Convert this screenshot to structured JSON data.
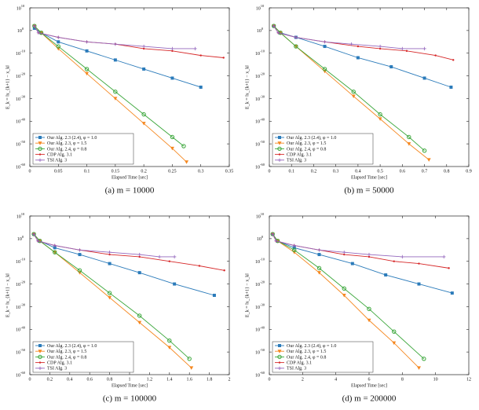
{
  "chart_data": [
    {
      "type": "line",
      "caption": "(a)  m = 10000",
      "xlabel": "Elapsed Time [sec]",
      "ylabel": "E_k = ‖x_{k+1} − x_k‖",
      "log_y": true,
      "legend": "lower left",
      "xlim": [
        0,
        0.35
      ],
      "xticks": [
        0,
        0.05,
        0.1,
        0.15,
        0.2,
        0.25,
        0.3,
        0.35
      ],
      "ylim": [
        1e-60,
        10000000000.0
      ],
      "yticks": [
        {
          "value": 10000000000.0,
          "label": "10^10"
        },
        {
          "value": 1,
          "label": "10^0"
        },
        {
          "value": 1e-10,
          "label": "10^-10"
        },
        {
          "value": 1e-20,
          "label": "10^-20"
        },
        {
          "value": 1e-30,
          "label": "10^-30"
        },
        {
          "value": 1e-40,
          "label": "10^-40"
        },
        {
          "value": 1e-50,
          "label": "10^-50"
        },
        {
          "value": 1e-60,
          "label": "10^-60"
        }
      ],
      "series": [
        {
          "name": "Our Alg. 2.3 (2.4), φ = 1.0",
          "color": "#2b7bba",
          "marker": "square",
          "x": [
            0.008,
            0.02,
            0.05,
            0.1,
            0.15,
            0.2,
            0.25,
            0.3
          ],
          "values": [
            10.0,
            0.1,
            1e-05,
            1e-09,
            1e-13,
            1e-17,
            1e-21,
            1e-25
          ]
        },
        {
          "name": "Our Alg. 2.3, φ = 1.5",
          "color": "#f5871f",
          "marker": "triangle-down",
          "x": [
            0.008,
            0.02,
            0.05,
            0.1,
            0.15,
            0.2,
            0.25,
            0.275
          ],
          "values": [
            100.0,
            0.1,
            1e-08,
            1e-19,
            1e-30,
            1e-41,
            1e-52,
            1e-58
          ]
        },
        {
          "name": "Our Alg. 2.4, φ = 0.8",
          "color": "#3aa63a",
          "marker": "circle",
          "x": [
            0.008,
            0.02,
            0.05,
            0.1,
            0.15,
            0.2,
            0.25,
            0.27
          ],
          "values": [
            100.0,
            0.1,
            1e-07,
            1e-17,
            1e-27,
            1e-37,
            1e-47,
            1e-51
          ]
        },
        {
          "name": "CDP Alg. 3.1",
          "color": "#d62728",
          "marker": "dot",
          "x": [
            0.008,
            0.015,
            0.05,
            0.1,
            0.15,
            0.2,
            0.25,
            0.3,
            0.34
          ],
          "values": [
            100.0,
            0.1,
            0.001,
            1e-05,
            1e-06,
            1e-08,
            1e-09,
            1e-11,
            1e-12
          ]
        },
        {
          "name": "TSI Alg. 3",
          "color": "#9467bd",
          "marker": "plus",
          "x": [
            0.008,
            0.015,
            0.05,
            0.1,
            0.15,
            0.2,
            0.25,
            0.29
          ],
          "values": [
            100.0,
            0.1,
            0.001,
            1e-05,
            1e-06,
            1e-07,
            1e-08,
            1e-08
          ]
        }
      ]
    },
    {
      "type": "line",
      "caption": "(b)  m = 50000",
      "xlabel": "Elapsed Time [sec]",
      "ylabel": "E_k = ‖x_{k+1} − x_k‖",
      "log_y": true,
      "legend": "lower left",
      "xlim": [
        0,
        0.9
      ],
      "xticks": [
        0,
        0.1,
        0.2,
        0.3,
        0.4,
        0.5,
        0.6,
        0.7,
        0.8,
        0.9
      ],
      "ylim": [
        1e-60,
        10000000000.0
      ],
      "yticks": [
        {
          "value": 10000000000.0,
          "label": "10^10"
        },
        {
          "value": 1,
          "label": "10^0"
        },
        {
          "value": 1e-10,
          "label": "10^-10"
        },
        {
          "value": 1e-20,
          "label": "10^-20"
        },
        {
          "value": 1e-30,
          "label": "10^-30"
        },
        {
          "value": 1e-40,
          "label": "10^-40"
        },
        {
          "value": 1e-50,
          "label": "10^-50"
        },
        {
          "value": 1e-60,
          "label": "10^-60"
        }
      ],
      "series": [
        {
          "name": "Our Alg. 2.3 (2.4), φ = 1.0",
          "color": "#2b7bba",
          "marker": "square",
          "x": [
            0.02,
            0.05,
            0.12,
            0.25,
            0.4,
            0.55,
            0.7,
            0.82
          ],
          "values": [
            100.0,
            0.1,
            0.001,
            1e-07,
            1e-12,
            1e-16,
            1e-21,
            1e-25
          ]
        },
        {
          "name": "Our Alg. 2.3, φ = 1.5",
          "color": "#f5871f",
          "marker": "triangle-down",
          "x": [
            0.02,
            0.05,
            0.12,
            0.25,
            0.38,
            0.5,
            0.63,
            0.72
          ],
          "values": [
            100.0,
            0.1,
            1e-07,
            1e-18,
            1e-29,
            1e-39,
            1e-50,
            1e-57
          ]
        },
        {
          "name": "Our Alg. 2.4, φ = 0.8",
          "color": "#3aa63a",
          "marker": "circle",
          "x": [
            0.02,
            0.05,
            0.12,
            0.25,
            0.38,
            0.5,
            0.63,
            0.7
          ],
          "values": [
            100.0,
            0.1,
            1e-07,
            1e-17,
            1e-27,
            1e-37,
            1e-47,
            1e-53
          ]
        },
        {
          "name": "CDP Alg. 3.1",
          "color": "#d62728",
          "marker": "dot",
          "x": [
            0.02,
            0.04,
            0.12,
            0.25,
            0.4,
            0.5,
            0.62,
            0.75,
            0.83
          ],
          "values": [
            100.0,
            0.1,
            0.001,
            1e-05,
            1e-07,
            1e-08,
            1e-09,
            1e-11,
            1e-13
          ]
        },
        {
          "name": "TSI Alg. 3",
          "color": "#9467bd",
          "marker": "plus",
          "x": [
            0.02,
            0.04,
            0.12,
            0.25,
            0.37,
            0.5,
            0.6,
            0.7
          ],
          "values": [
            100.0,
            0.1,
            0.001,
            1e-05,
            1e-06,
            1e-07,
            1e-08,
            1e-08
          ]
        }
      ]
    },
    {
      "type": "line",
      "caption": "(c)  m = 100000",
      "xlabel": "Elapsed Time [sec]",
      "ylabel": "E_k = ‖x_{k+1} − x_k‖",
      "log_y": true,
      "legend": "lower left",
      "xlim": [
        0,
        2
      ],
      "xticks": [
        0,
        0.2,
        0.4,
        0.6,
        0.8,
        1,
        1.2,
        1.4,
        1.6,
        1.8,
        2
      ],
      "ylim": [
        1e-60,
        10000000000.0
      ],
      "yticks": [
        {
          "value": 10000000000.0,
          "label": "10^10"
        },
        {
          "value": 1,
          "label": "10^0"
        },
        {
          "value": 1e-10,
          "label": "10^-10"
        },
        {
          "value": 1e-20,
          "label": "10^-20"
        },
        {
          "value": 1e-30,
          "label": "10^-30"
        },
        {
          "value": 1e-40,
          "label": "10^-40"
        },
        {
          "value": 1e-50,
          "label": "10^-50"
        },
        {
          "value": 1e-60,
          "label": "10^-60"
        }
      ],
      "series": [
        {
          "name": "Our Alg. 2.3 (2.4), φ = 1.0",
          "color": "#2b7bba",
          "marker": "square",
          "x": [
            0.04,
            0.1,
            0.25,
            0.5,
            0.8,
            1.1,
            1.45,
            1.85
          ],
          "values": [
            100.0,
            0.1,
            0.0001,
            1e-07,
            1e-11,
            1e-15,
            1e-20,
            1e-25
          ]
        },
        {
          "name": "Our Alg. 2.3, φ = 1.5",
          "color": "#f5871f",
          "marker": "triangle-down",
          "x": [
            0.04,
            0.1,
            0.25,
            0.5,
            0.8,
            1.1,
            1.4,
            1.62
          ],
          "values": [
            100.0,
            0.1,
            1e-06,
            1e-15,
            1e-26,
            1e-37,
            1e-48,
            1e-57
          ]
        },
        {
          "name": "Our Alg. 2.4, φ = 0.8",
          "color": "#3aa63a",
          "marker": "circle",
          "x": [
            0.04,
            0.1,
            0.25,
            0.5,
            0.8,
            1.1,
            1.4,
            1.6
          ],
          "values": [
            100.0,
            0.1,
            1e-06,
            1e-14,
            1e-24,
            1e-34,
            1e-45,
            1e-53
          ]
        },
        {
          "name": "CDP Alg. 3.1",
          "color": "#d62728",
          "marker": "dot",
          "x": [
            0.04,
            0.08,
            0.25,
            0.5,
            0.8,
            1.1,
            1.4,
            1.7,
            1.95
          ],
          "values": [
            100.0,
            0.1,
            0.001,
            1e-05,
            1e-07,
            1e-08,
            1e-10,
            1e-12,
            1e-14
          ]
        },
        {
          "name": "TSI Alg. 3",
          "color": "#9467bd",
          "marker": "plus",
          "x": [
            0.04,
            0.08,
            0.25,
            0.5,
            0.8,
            1.1,
            1.3,
            1.45
          ],
          "values": [
            100.0,
            0.1,
            0.001,
            1e-05,
            1e-06,
            1e-07,
            1e-08,
            1e-08
          ]
        }
      ]
    },
    {
      "type": "line",
      "caption": "(d)  m = 200000",
      "xlabel": "Elapsed Time [sec]",
      "ylabel": "E_k = ‖x_{k+1} − x_k‖",
      "log_y": true,
      "legend": "lower left",
      "xlim": [
        0,
        12
      ],
      "xticks": [
        0,
        2,
        4,
        6,
        8,
        10,
        12
      ],
      "ylim": [
        1e-60,
        10000000000.0
      ],
      "yticks": [
        {
          "value": 10000000000.0,
          "label": "10^10"
        },
        {
          "value": 1,
          "label": "10^0"
        },
        {
          "value": 1e-10,
          "label": "10^-10"
        },
        {
          "value": 1e-20,
          "label": "10^-20"
        },
        {
          "value": 1e-30,
          "label": "10^-30"
        },
        {
          "value": 1e-40,
          "label": "10^-40"
        },
        {
          "value": 1e-50,
          "label": "10^-50"
        },
        {
          "value": 1e-60,
          "label": "10^-60"
        }
      ],
      "series": [
        {
          "name": "Our Alg. 2.3 (2.4), φ = 1.0",
          "color": "#2b7bba",
          "marker": "square",
          "x": [
            0.2,
            0.5,
            1.5,
            3,
            5,
            7,
            9,
            11
          ],
          "values": [
            100.0,
            0.1,
            0.0001,
            1e-07,
            1e-11,
            1e-16,
            1e-20,
            1e-24
          ]
        },
        {
          "name": "Our Alg. 2.3, φ = 1.5",
          "color": "#f5871f",
          "marker": "triangle-down",
          "x": [
            0.2,
            0.5,
            1.5,
            3,
            4.5,
            6,
            7.5,
            9
          ],
          "values": [
            100.0,
            0.1,
            1e-06,
            1e-15,
            1e-25,
            1e-36,
            1e-46,
            1e-57
          ]
        },
        {
          "name": "Our Alg. 2.4, φ = 0.8",
          "color": "#3aa63a",
          "marker": "circle",
          "x": [
            0.2,
            0.5,
            1.5,
            3,
            4.5,
            6,
            7.5,
            9.3
          ],
          "values": [
            100.0,
            0.1,
            1e-05,
            1e-13,
            1e-22,
            1e-31,
            1e-41,
            1e-53
          ]
        },
        {
          "name": "CDP Alg. 3.1",
          "color": "#d62728",
          "marker": "dot",
          "x": [
            0.2,
            0.4,
            1.5,
            3,
            4.5,
            6,
            7.5,
            9,
            10.8
          ],
          "values": [
            100.0,
            0.1,
            0.001,
            1e-05,
            1e-07,
            1e-08,
            1e-10,
            1e-11,
            1e-13
          ]
        },
        {
          "name": "TSI Alg. 3",
          "color": "#9467bd",
          "marker": "plus",
          "x": [
            0.2,
            0.4,
            1.5,
            3,
            4.5,
            6,
            8,
            10.5
          ],
          "values": [
            100.0,
            0.1,
            0.001,
            1e-05,
            1e-06,
            1e-07,
            1e-08,
            1e-08
          ]
        }
      ]
    }
  ]
}
